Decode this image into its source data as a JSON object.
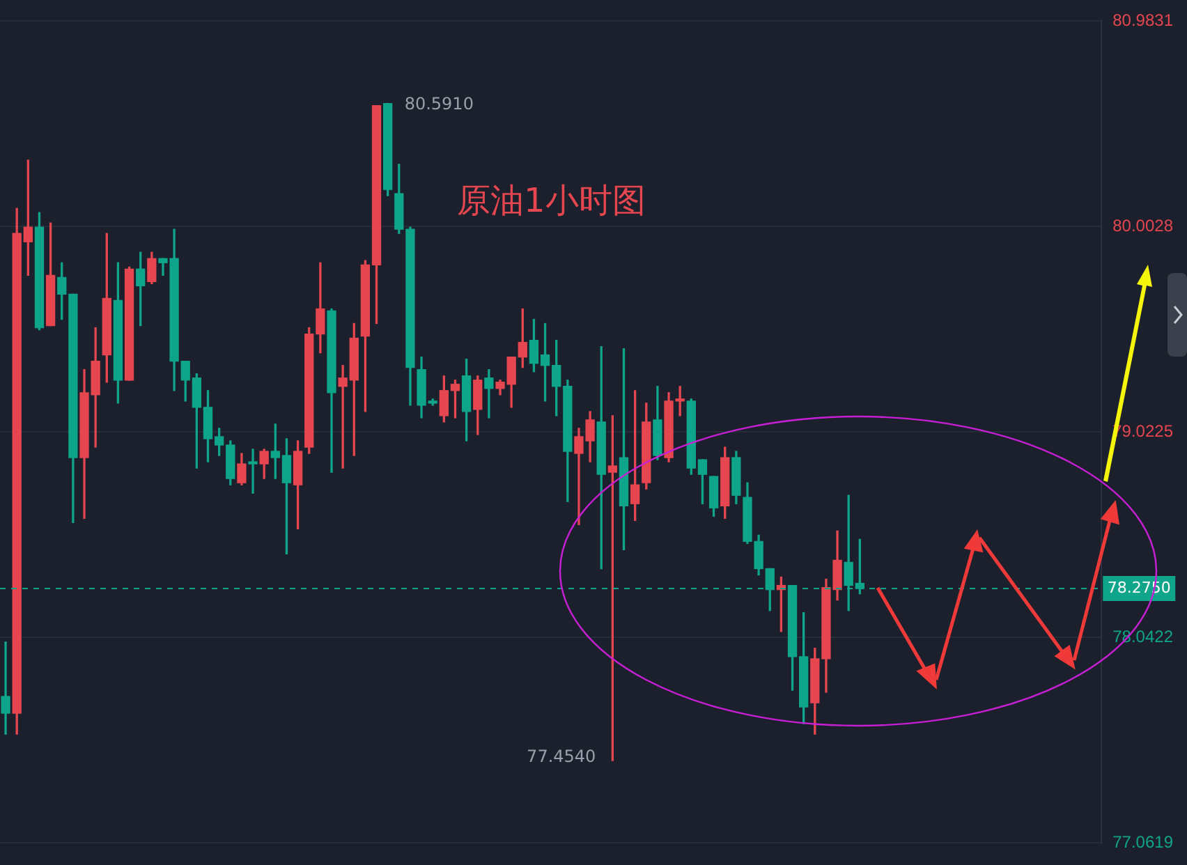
{
  "chart_data": {
    "type": "candlestick",
    "title": "原油1小时图",
    "categories": [
      null,
      null,
      null,
      null,
      null,
      null,
      null,
      null,
      null,
      null,
      null,
      null,
      null,
      null,
      null,
      null,
      null,
      null,
      null,
      null,
      null,
      null,
      null,
      null,
      null,
      null,
      null,
      null,
      null,
      null,
      null,
      null,
      null,
      null,
      null,
      null,
      null,
      null,
      null,
      null,
      null,
      null,
      null,
      null,
      null,
      null,
      null,
      null,
      null,
      null,
      null,
      null,
      null,
      null,
      null,
      null,
      null,
      null,
      null,
      null,
      null,
      null,
      null,
      null,
      null,
      null,
      null,
      null,
      null,
      null,
      null,
      null,
      null,
      null,
      null,
      null,
      null,
      null,
      null,
      null,
      null,
      null,
      null,
      null,
      null,
      null,
      null,
      null,
      null,
      null,
      null,
      null,
      null,
      null,
      null,
      null,
      null,
      null
    ],
    "ohlc": [
      [
        77.76,
        78.02,
        77.58,
        77.68
      ],
      [
        77.68,
        80.09,
        77.58,
        79.97
      ],
      [
        79.93,
        80.32,
        79.77,
        80.0
      ],
      [
        80.0,
        80.07,
        79.51,
        79.52
      ],
      [
        79.53,
        80.02,
        79.53,
        79.77
      ],
      [
        79.76,
        79.83,
        79.56,
        79.68
      ],
      [
        79.68,
        79.68,
        78.59,
        78.9
      ],
      [
        78.9,
        79.32,
        78.61,
        79.21
      ],
      [
        79.2,
        79.52,
        78.95,
        79.36
      ],
      [
        79.39,
        79.97,
        79.26,
        79.66
      ],
      [
        79.65,
        79.83,
        79.16,
        79.27
      ],
      [
        79.27,
        79.81,
        79.27,
        79.8
      ],
      [
        79.8,
        79.88,
        79.53,
        79.72
      ],
      [
        79.74,
        79.88,
        79.73,
        79.85
      ],
      [
        79.85,
        79.85,
        79.77,
        79.83
      ],
      [
        79.85,
        79.99,
        79.22,
        79.36
      ],
      [
        79.36,
        79.36,
        79.17,
        79.27
      ],
      [
        79.28,
        79.3,
        78.85,
        79.14
      ],
      [
        79.14,
        79.22,
        78.88,
        78.99
      ],
      [
        79.0,
        79.04,
        78.91,
        78.96
      ],
      [
        78.96,
        78.98,
        78.77,
        78.8
      ],
      [
        78.78,
        78.92,
        78.77,
        78.87
      ],
      [
        78.88,
        78.94,
        78.73,
        78.87
      ],
      [
        78.87,
        78.94,
        78.8,
        78.93
      ],
      [
        78.93,
        79.06,
        78.8,
        78.9
      ],
      [
        78.91,
        78.99,
        78.44,
        78.78
      ],
      [
        78.77,
        78.98,
        78.56,
        78.93
      ],
      [
        78.95,
        79.52,
        78.92,
        79.49
      ],
      [
        79.49,
        79.83,
        79.4,
        79.61
      ],
      [
        79.6,
        79.61,
        78.83,
        79.21
      ],
      [
        79.24,
        79.34,
        78.85,
        79.28
      ],
      [
        79.27,
        79.54,
        78.91,
        79.47
      ],
      [
        79.48,
        79.84,
        79.12,
        79.82
      ],
      [
        79.82,
        80.58,
        79.54,
        80.58
      ],
      [
        80.59,
        80.591,
        80.15,
        80.18
      ],
      [
        80.16,
        80.3,
        79.97,
        79.99
      ],
      [
        79.99,
        80.0,
        79.15,
        79.33
      ],
      [
        79.32,
        79.38,
        79.09,
        79.15
      ],
      [
        79.17,
        79.18,
        79.15,
        79.16
      ],
      [
        79.1,
        79.29,
        79.07,
        79.22
      ],
      [
        79.22,
        79.27,
        79.09,
        79.25
      ],
      [
        79.29,
        79.37,
        78.98,
        79.12
      ],
      [
        79.13,
        79.29,
        79.01,
        79.27
      ],
      [
        79.28,
        79.32,
        79.09,
        79.23
      ],
      [
        79.23,
        79.27,
        79.2,
        79.26
      ],
      [
        79.25,
        79.38,
        79.14,
        79.38
      ],
      [
        79.38,
        79.61,
        79.33,
        79.45
      ],
      [
        79.46,
        79.56,
        79.31,
        79.35
      ],
      [
        79.39,
        79.54,
        79.17,
        79.34
      ],
      [
        79.34,
        79.46,
        79.1,
        79.24
      ],
      [
        79.24,
        79.27,
        78.69,
        78.93
      ],
      [
        78.92,
        79.04,
        78.58,
        79.0
      ],
      [
        78.98,
        79.12,
        78.88,
        79.08
      ],
      [
        79.07,
        79.43,
        78.37,
        78.82
      ],
      [
        78.83,
        79.1,
        77.454,
        78.86
      ],
      [
        78.9,
        79.42,
        78.46,
        78.67
      ],
      [
        78.68,
        79.22,
        78.6,
        78.77
      ],
      [
        78.78,
        79.16,
        78.75,
        79.07
      ],
      [
        79.08,
        79.24,
        78.89,
        78.91
      ],
      [
        78.9,
        79.21,
        78.88,
        79.17
      ],
      [
        79.17,
        79.24,
        79.1,
        79.18
      ],
      [
        79.17,
        79.18,
        78.82,
        78.85
      ],
      [
        78.89,
        78.89,
        78.68,
        78.82
      ],
      [
        78.81,
        78.81,
        78.62,
        78.66
      ],
      [
        78.67,
        78.95,
        78.61,
        78.9
      ],
      [
        78.9,
        78.93,
        78.68,
        78.72
      ],
      [
        78.71,
        78.78,
        78.49,
        78.5
      ],
      [
        78.5,
        78.53,
        78.34,
        78.37
      ],
      [
        78.37,
        78.37,
        78.17,
        78.27
      ],
      [
        78.27,
        78.33,
        78.07,
        78.29
      ],
      [
        78.29,
        78.29,
        77.79,
        77.95
      ],
      [
        77.95,
        78.16,
        77.63,
        77.71
      ],
      [
        77.73,
        77.99,
        77.58,
        77.94
      ],
      [
        77.94,
        78.32,
        77.78,
        78.28
      ],
      [
        78.27,
        78.55,
        78.22,
        78.41
      ],
      [
        78.4,
        78.72,
        78.17,
        78.29
      ],
      [
        78.3,
        78.51,
        78.25,
        78.275
      ],
      null,
      null,
      null,
      null,
      null,
      null,
      null,
      null,
      null,
      null,
      null,
      null,
      null,
      null,
      null,
      null,
      null,
      null,
      null,
      null,
      null
    ],
    "colors": [
      "#0ea58a",
      "#e5464f",
      "#e5464f",
      "#0ea58a",
      "#e5464f",
      "#0ea58a",
      "#0ea58a",
      "#e5464f",
      "#e5464f",
      "#e5464f",
      "#0ea58a",
      "#e5464f",
      "#0ea58a",
      "#e5464f",
      "#0ea58a",
      "#0ea58a",
      "#0ea58a",
      "#0ea58a",
      "#0ea58a",
      "#0ea58a",
      "#0ea58a",
      "#e5464f",
      "#0ea58a",
      "#e5464f",
      "#0ea58a",
      "#0ea58a",
      "#e5464f",
      "#e5464f",
      "#e5464f",
      "#0ea58a",
      "#e5464f",
      "#e5464f",
      "#e5464f",
      "#e5464f",
      "#0ea58a",
      "#0ea58a",
      "#0ea58a",
      "#0ea58a",
      "#0ea58a",
      "#e5464f",
      "#e5464f",
      "#0ea58a",
      "#e5464f",
      "#0ea58a",
      "#e5464f",
      "#e5464f",
      "#e5464f",
      "#0ea58a",
      "#0ea58a",
      "#0ea58a",
      "#0ea58a",
      "#e5464f",
      "#e5464f",
      "#0ea58a",
      "#e5464f",
      "#0ea58a",
      "#e5464f",
      "#e5464f",
      "#0ea58a",
      "#e5464f",
      "#e5464f",
      "#0ea58a",
      "#0ea58a",
      "#0ea58a",
      "#e5464f",
      "#0ea58a",
      "#0ea58a",
      "#0ea58a",
      "#0ea58a",
      "#e5464f",
      "#0ea58a",
      "#0ea58a",
      "#e5464f",
      "#e5464f",
      "#e5464f",
      "#0ea58a",
      "#0ea58a",
      null,
      null,
      null,
      null,
      null,
      null,
      null,
      null,
      null,
      null,
      null,
      null,
      null,
      null,
      null,
      null,
      null,
      null,
      null,
      null,
      null
    ],
    "ylim": [
      77.0619,
      80.9831
    ],
    "yticks": [
      77.0619,
      78.0422,
      79.0225,
      80.0028,
      80.9831
    ],
    "ref_lines": [
      {
        "axis": "y",
        "value": 78.275,
        "label": "78.2750",
        "color": "#0ea58a",
        "line_style": "dashed"
      }
    ],
    "annotations": [
      "80.5910",
      "77.4540"
    ],
    "grid": "y",
    "legend": false
  }
}
